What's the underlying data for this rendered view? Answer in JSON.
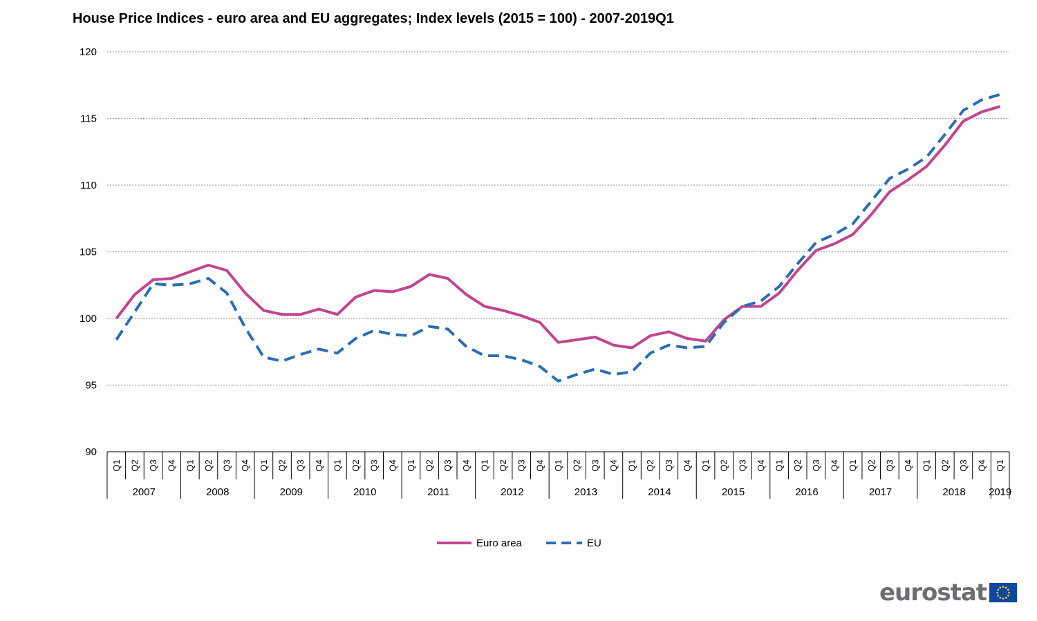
{
  "title": "House Price Indices - euro area and EU aggregates; Index levels (2015 = 100) - 2007-2019Q1",
  "logo_text": "eurostat",
  "colors": {
    "euro_area": "#c2448f",
    "eu": "#2a6db5",
    "grid": "#a6a6a6",
    "flag": "#0e47a1",
    "star": "#ffdd00"
  },
  "chart_data": {
    "type": "line",
    "title": "House Price Indices - euro area and EU aggregates; Index levels (2015 = 100) - 2007-2019Q1",
    "ylim": [
      90,
      120
    ],
    "yticks": [
      90,
      95,
      100,
      105,
      110,
      115,
      120
    ],
    "grid": true,
    "legend_position": "bottom",
    "quarters": [
      "Q1",
      "Q2",
      "Q3",
      "Q4"
    ],
    "years": [
      "2007",
      "2008",
      "2009",
      "2010",
      "2011",
      "2012",
      "2013",
      "2014",
      "2015",
      "2016",
      "2017",
      "2018",
      "2019"
    ],
    "x": [
      "2007Q1",
      "2007Q2",
      "2007Q3",
      "2007Q4",
      "2008Q1",
      "2008Q2",
      "2008Q3",
      "2008Q4",
      "2009Q1",
      "2009Q2",
      "2009Q3",
      "2009Q4",
      "2010Q1",
      "2010Q2",
      "2010Q3",
      "2010Q4",
      "2011Q1",
      "2011Q2",
      "2011Q3",
      "2011Q4",
      "2012Q1",
      "2012Q2",
      "2012Q3",
      "2012Q4",
      "2013Q1",
      "2013Q2",
      "2013Q3",
      "2013Q4",
      "2014Q1",
      "2014Q2",
      "2014Q3",
      "2014Q4",
      "2015Q1",
      "2015Q2",
      "2015Q3",
      "2015Q4",
      "2016Q1",
      "2016Q2",
      "2016Q3",
      "2016Q4",
      "2017Q1",
      "2017Q2",
      "2017Q3",
      "2017Q4",
      "2018Q1",
      "2018Q2",
      "2018Q3",
      "2018Q4",
      "2019Q1"
    ],
    "series": [
      {
        "name": "Euro area",
        "style": "solid",
        "values": [
          100.0,
          101.8,
          102.9,
          103.0,
          103.5,
          104.0,
          103.6,
          101.9,
          100.6,
          100.3,
          100.3,
          100.7,
          100.3,
          101.6,
          102.1,
          102.0,
          102.4,
          103.3,
          103.0,
          101.8,
          100.9,
          100.6,
          100.2,
          99.7,
          98.2,
          98.4,
          98.6,
          98.0,
          97.8,
          98.7,
          99.0,
          98.5,
          98.3,
          99.9,
          100.9,
          100.9,
          101.9,
          103.6,
          105.1,
          105.6,
          106.3,
          107.8,
          109.5,
          110.4,
          111.4,
          113.0,
          114.8,
          115.5,
          115.9
        ]
      },
      {
        "name": "EU",
        "style": "dashed",
        "values": [
          98.4,
          100.5,
          102.6,
          102.5,
          102.6,
          103.0,
          101.9,
          99.3,
          97.1,
          96.8,
          97.3,
          97.7,
          97.4,
          98.5,
          99.1,
          98.8,
          98.7,
          99.4,
          99.2,
          97.9,
          97.2,
          97.2,
          96.9,
          96.4,
          95.3,
          95.8,
          96.2,
          95.8,
          96.0,
          97.4,
          98.0,
          97.8,
          97.9,
          99.7,
          100.9,
          101.3,
          102.4,
          104.1,
          105.7,
          106.3,
          107.1,
          108.8,
          110.5,
          111.2,
          112.1,
          113.8,
          115.6,
          116.4,
          116.8
        ]
      }
    ]
  }
}
